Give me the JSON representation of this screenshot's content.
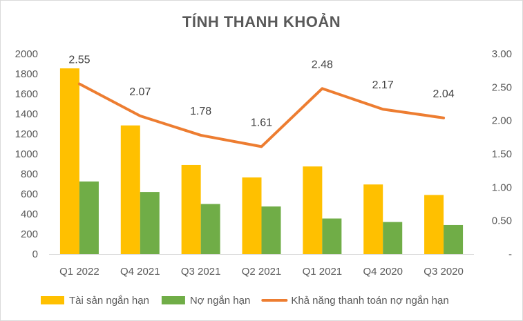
{
  "chart_data": {
    "type": "bar",
    "title": "TÍNH THANH KHOẢN",
    "categories": [
      "Q1 2022",
      "Q4 2021",
      "Q3 2021",
      "Q2 2021",
      "Q1 2021",
      "Q4 2020",
      "Q3 2020"
    ],
    "series": [
      {
        "name": "Tài sản ngắn hạn",
        "type": "bar",
        "axis": "left",
        "color": "#ffc000",
        "values": [
          1855,
          1285,
          890,
          765,
          875,
          695,
          590
        ]
      },
      {
        "name": "Nợ ngắn hạn",
        "type": "bar",
        "axis": "left",
        "color": "#70ad47",
        "values": [
          725,
          620,
          500,
          475,
          355,
          320,
          290
        ]
      },
      {
        "name": "Khả năng thanh toán nợ ngắn hạn",
        "type": "line",
        "axis": "right",
        "color": "#ed7d31",
        "values": [
          2.55,
          2.07,
          1.78,
          1.61,
          2.48,
          2.17,
          2.04
        ],
        "labels": [
          "2.55",
          "2.07",
          "1.78",
          "1.61",
          "2.48",
          "2.17",
          "2.04"
        ]
      }
    ],
    "left_axis": {
      "ylim": [
        0,
        2000
      ],
      "ticks": [
        "0",
        "200",
        "400",
        "600",
        "800",
        "1000",
        "1200",
        "1400",
        "1600",
        "1800",
        "2000"
      ]
    },
    "right_axis": {
      "ylim": [
        0,
        3
      ],
      "ticks": [
        "-",
        "0.50",
        "1.00",
        "1.50",
        "2.00",
        "2.50",
        "3.00"
      ]
    },
    "grid": false,
    "legend_position": "bottom"
  }
}
